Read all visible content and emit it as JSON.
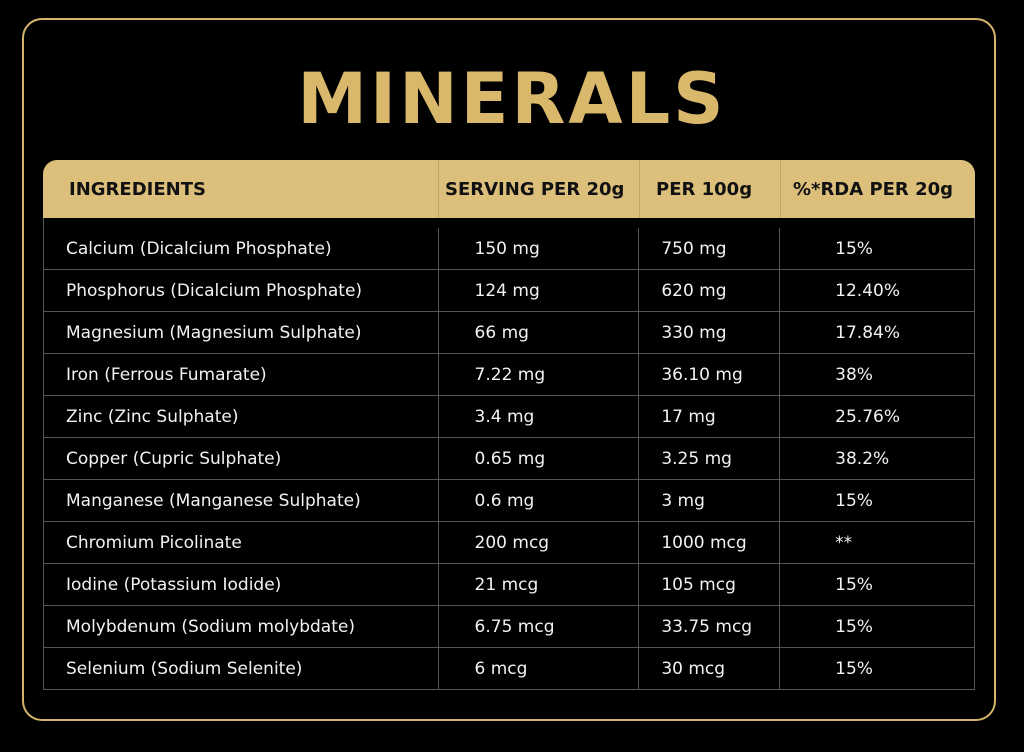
{
  "title": "MINERALS",
  "colors": {
    "accent": "#d9b86c",
    "header_bg": "#dcbf7a",
    "background": "#000000",
    "grid": "#555555"
  },
  "table": {
    "headers": [
      "INGREDIENTS",
      "SERVING PER 20g",
      "PER 100g",
      "%*RDA PER 20g"
    ],
    "rows": [
      [
        "Calcium (Dicalcium Phosphate)",
        "150 mg",
        "750 mg",
        "15%"
      ],
      [
        "Phosphorus (Dicalcium Phosphate)",
        "124 mg",
        "620 mg",
        "12.40%"
      ],
      [
        "Magnesium (Magnesium Sulphate)",
        "66 mg",
        "330 mg",
        "17.84%"
      ],
      [
        "Iron (Ferrous Fumarate)",
        "7.22 mg",
        "36.10 mg",
        "38%"
      ],
      [
        "Zinc (Zinc Sulphate)",
        "3.4 mg",
        "17 mg",
        "25.76%"
      ],
      [
        "Copper (Cupric Sulphate)",
        "0.65 mg",
        "3.25 mg",
        "38.2%"
      ],
      [
        "Manganese (Manganese Sulphate)",
        "0.6 mg",
        "3 mg",
        "15%"
      ],
      [
        "Chromium Picolinate",
        "200 mcg",
        "1000 mcg",
        "**"
      ],
      [
        "Iodine (Potassium Iodide)",
        "21 mcg",
        "105 mcg",
        "15%"
      ],
      [
        "Molybdenum (Sodium molybdate)",
        "6.75 mcg",
        "33.75 mcg",
        "15%"
      ],
      [
        "Selenium (Sodium Selenite)",
        "6 mcg",
        "30 mcg",
        "15%"
      ]
    ]
  }
}
